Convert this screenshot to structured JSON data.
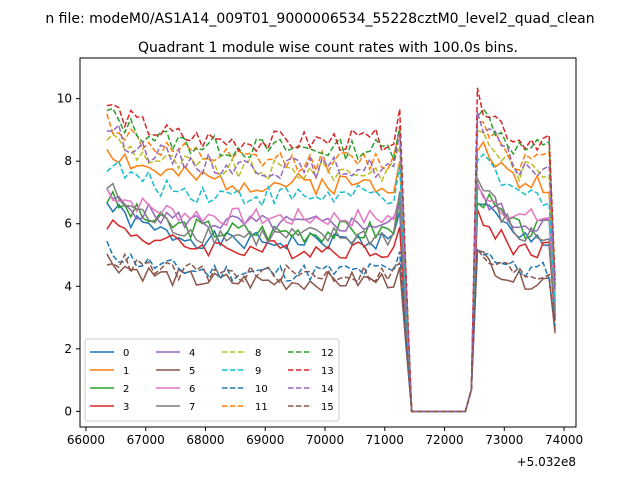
{
  "chart_data": {
    "type": "line",
    "suptitle": "n file: modeM0/AS1A14_009T01_9000006534_55228cztM0_level2_quad_clean",
    "title": "Quadrant 1 module wise count rates with 100.0s bins.",
    "xlabel": "",
    "ylabel": "",
    "x_offset_label": "+5.032e8",
    "xlim": [
      65900,
      74200
    ],
    "ylim": [
      -0.5,
      11.3
    ],
    "x_ticks": [
      66000,
      67000,
      68000,
      69000,
      70000,
      71000,
      72000,
      73000,
      74000
    ],
    "x_tick_labels": [
      "66000",
      "67000",
      "68000",
      "69000",
      "70000",
      "71000",
      "72000",
      "73000",
      "74000"
    ],
    "y_ticks": [
      0,
      2,
      4,
      6,
      8,
      10
    ],
    "y_tick_labels": [
      "0",
      "2",
      "4",
      "6",
      "8",
      "10"
    ],
    "grid": false,
    "legend": "lower-left, 4 columns",
    "x_start": 66350,
    "x_step": 100,
    "segments": {
      "gap_start": 71450,
      "gap_end": 72250,
      "dip": 71350,
      "spike": 71250,
      "resume": 72450,
      "peak": 72550,
      "end": 73850
    },
    "series": [
      {
        "name": "0",
        "color": "#1f77b4",
        "style": "solid",
        "level1": 5.2,
        "level2": 5.5,
        "peak": 6.8,
        "end": 3.0,
        "amp": 0.3
      },
      {
        "name": "1",
        "color": "#ff7f0e",
        "style": "solid",
        "level1": 7.2,
        "level2": 7.3,
        "peak": 8.6,
        "end": 3.6,
        "amp": 0.35
      },
      {
        "name": "2",
        "color": "#2ca02c",
        "style": "solid",
        "level1": 5.6,
        "level2": 5.8,
        "peak": 7.0,
        "end": 3.2,
        "amp": 0.35
      },
      {
        "name": "3",
        "color": "#d62728",
        "style": "solid",
        "level1": 5.1,
        "level2": 5.2,
        "peak": 6.2,
        "end": 2.9,
        "amp": 0.3
      },
      {
        "name": "4",
        "color": "#9467bd",
        "style": "solid",
        "level1": 5.9,
        "level2": 6.0,
        "peak": 7.0,
        "end": 3.3,
        "amp": 0.3
      },
      {
        "name": "5",
        "color": "#8c564b",
        "style": "solid",
        "level1": 4.0,
        "level2": 4.2,
        "peak": 5.0,
        "end": 2.5,
        "amp": 0.3
      },
      {
        "name": "6",
        "color": "#e377c2",
        "style": "solid",
        "level1": 6.1,
        "level2": 6.2,
        "peak": 7.2,
        "end": 3.5,
        "amp": 0.3
      },
      {
        "name": "7",
        "color": "#7f7f7f",
        "style": "solid",
        "level1": 5.4,
        "level2": 5.6,
        "peak": 7.4,
        "end": 3.1,
        "amp": 0.35
      },
      {
        "name": "8",
        "color": "#bcbd22",
        "style": "dashed",
        "level1": 7.6,
        "level2": 7.7,
        "peak": 9.0,
        "end": 3.8,
        "amp": 0.35
      },
      {
        "name": "9",
        "color": "#17becf",
        "style": "dashed",
        "level1": 6.8,
        "level2": 6.9,
        "peak": 8.1,
        "end": 3.5,
        "amp": 0.35
      },
      {
        "name": "10",
        "color": "#1f77b4",
        "style": "dashed",
        "level1": 4.3,
        "level2": 4.5,
        "peak": 5.3,
        "end": 2.7,
        "amp": 0.3
      },
      {
        "name": "11",
        "color": "#ff7f0e",
        "style": "dashed",
        "level1": 7.9,
        "level2": 8.0,
        "peak": 9.5,
        "end": 4.0,
        "amp": 0.35
      },
      {
        "name": "12",
        "color": "#2ca02c",
        "style": "dashed",
        "level1": 8.3,
        "level2": 8.4,
        "peak": 9.7,
        "end": 4.0,
        "amp": 0.35
      },
      {
        "name": "13",
        "color": "#d62728",
        "style": "dashed",
        "level1": 8.4,
        "level2": 8.7,
        "peak": 10.0,
        "end": 4.2,
        "amp": 0.35
      },
      {
        "name": "14",
        "color": "#9467bd",
        "style": "dashed",
        "level1": 7.7,
        "level2": 7.8,
        "peak": 9.3,
        "end": 3.8,
        "amp": 0.35
      },
      {
        "name": "15",
        "color": "#8c564b",
        "style": "dashed",
        "level1": 4.3,
        "level2": 4.4,
        "peak": 5.0,
        "end": 2.6,
        "amp": 0.3
      }
    ]
  }
}
